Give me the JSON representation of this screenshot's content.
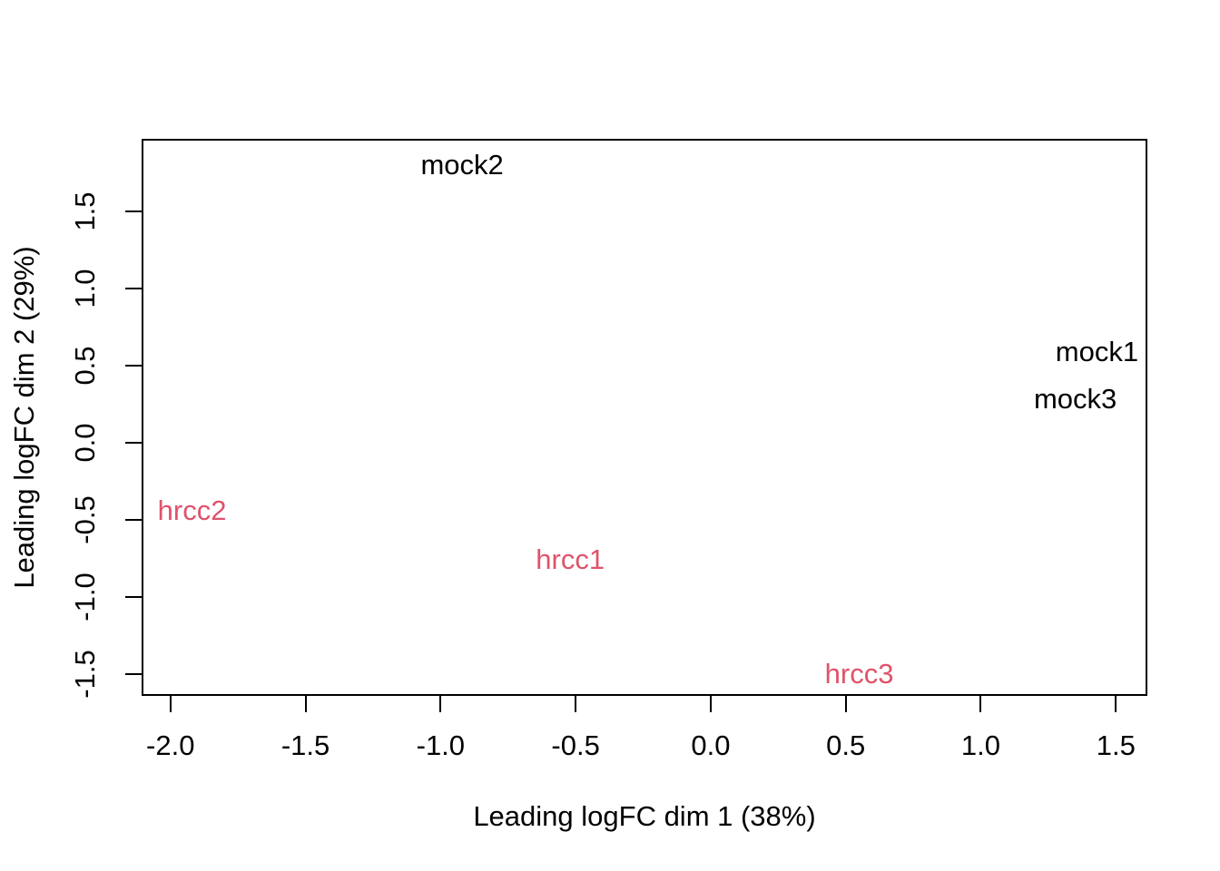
{
  "figure": {
    "background_color": "#ffffff",
    "text_color": "#000000"
  },
  "chart_data": {
    "type": "scatter",
    "subtype": "mds-plot-text-labels",
    "title": "",
    "xlabel": "Leading logFC dim 1 (38%)",
    "ylabel": "Leading logFC dim 2 (29%)",
    "xlim": [
      -2.1,
      1.61
    ],
    "ylim": [
      -1.63,
      1.96
    ],
    "x_ticks": [
      -2.0,
      -1.5,
      -1.0,
      -0.5,
      0.0,
      0.5,
      1.0,
      1.5
    ],
    "x_tick_labels": [
      "-2.0",
      "-1.5",
      "-1.0",
      "-0.5",
      "0.0",
      "0.5",
      "1.0",
      "1.5"
    ],
    "y_ticks": [
      -1.5,
      -1.0,
      -0.5,
      0.0,
      0.5,
      1.0,
      1.5
    ],
    "y_tick_labels": [
      "-1.5",
      "-1.0",
      "-0.5",
      "0.0",
      "0.5",
      "1.0",
      "1.5"
    ],
    "grid": false,
    "legend": "none",
    "point_style": "text-label",
    "series": [
      {
        "name": "mock",
        "color": "#000000",
        "points": [
          {
            "label": "mock1",
            "x": 1.43,
            "y": 0.59
          },
          {
            "label": "mock2",
            "x": -0.92,
            "y": 1.8
          },
          {
            "label": "mock3",
            "x": 1.35,
            "y": 0.28
          }
        ]
      },
      {
        "name": "hrcc",
        "color": "#DF536B",
        "points": [
          {
            "label": "hrcc1",
            "x": -0.52,
            "y": -0.76
          },
          {
            "label": "hrcc2",
            "x": -1.92,
            "y": -0.44
          },
          {
            "label": "hrcc3",
            "x": 0.55,
            "y": -1.5
          }
        ]
      }
    ]
  }
}
